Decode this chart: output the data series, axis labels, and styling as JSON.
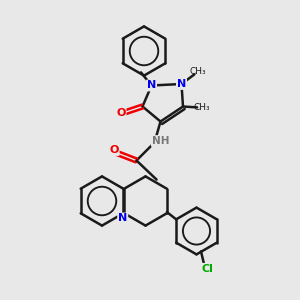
{
  "background_color": "#e8e8e8",
  "bond_color": "#1a1a1a",
  "bond_width": 1.8,
  "atom_colors": {
    "C": "#1a1a1a",
    "N": "#0000ee",
    "O": "#ee0000",
    "Cl": "#00aa00",
    "H": "#777777"
  },
  "figsize": [
    3.0,
    3.0
  ],
  "dpi": 100,
  "xlim": [
    0,
    10
  ],
  "ylim": [
    0,
    10
  ]
}
